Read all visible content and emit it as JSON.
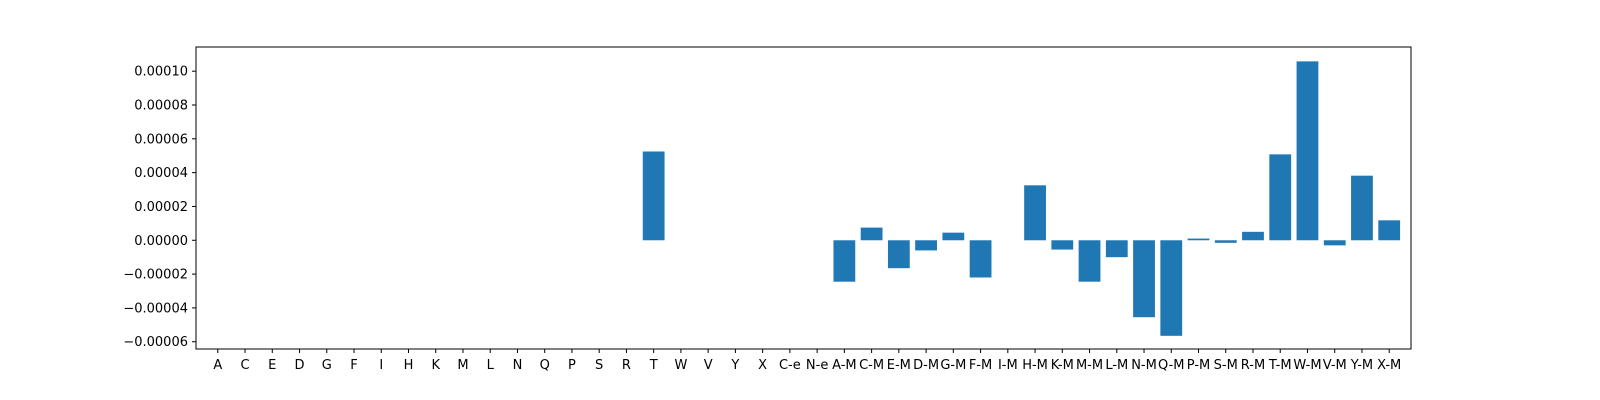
{
  "chart_data": {
    "type": "bar",
    "title": "",
    "xlabel": "",
    "ylabel": "",
    "categories": [
      "A",
      "C",
      "E",
      "D",
      "G",
      "F",
      "I",
      "H",
      "K",
      "M",
      "L",
      "N",
      "Q",
      "P",
      "S",
      "R",
      "T",
      "W",
      "V",
      "Y",
      "X",
      "C-e",
      "N-e",
      "A-M",
      "C-M",
      "E-M",
      "D-M",
      "G-M",
      "F-M",
      "I-M",
      "H-M",
      "K-M",
      "M-M",
      "L-M",
      "N-M",
      "Q-M",
      "P-M",
      "S-M",
      "R-M",
      "T-M",
      "W-M",
      "V-M",
      "Y-M",
      "X-M"
    ],
    "values": [
      0,
      0,
      0,
      0,
      0,
      0,
      0,
      0,
      0,
      0,
      0,
      0,
      0,
      0,
      0,
      0,
      5.25e-05,
      0,
      0,
      0,
      0,
      0,
      0,
      -2.45e-05,
      7.5e-06,
      -1.65e-05,
      -6e-06,
      4.5e-06,
      -2.2e-05,
      0,
      3.25e-05,
      -5.5e-06,
      -2.45e-05,
      -1e-05,
      -4.55e-05,
      -5.65e-05,
      1e-06,
      -1.5e-06,
      5e-06,
      5.08e-05,
      0.0001058,
      -3e-06,
      3.82e-05,
      1.18e-05
    ],
    "ylim": [
      -6.43e-05,
      0.0001143
    ],
    "yticks": [
      -6e-05,
      -4e-05,
      -2e-05,
      0.0,
      2e-05,
      4e-05,
      6e-05,
      8e-05,
      0.0001
    ],
    "ytick_labels": [
      "−0.00006",
      "−0.00004",
      "−0.00002",
      "0.00000",
      "0.00002",
      "0.00004",
      "0.00006",
      "0.00008",
      "0.00010"
    ],
    "grid": false,
    "bar_color": "#1f77b4"
  }
}
